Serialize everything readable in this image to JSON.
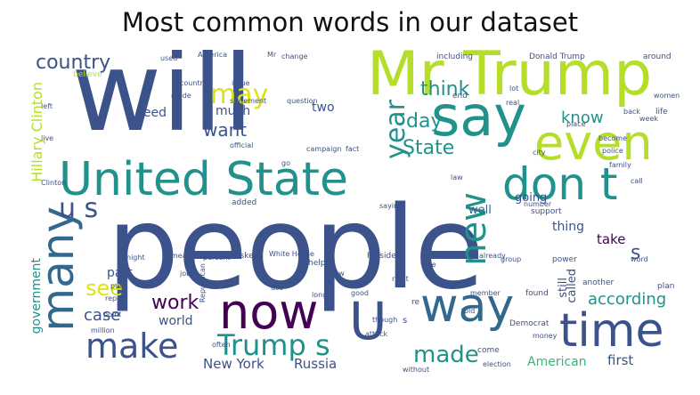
{
  "title": "Most common words in our dataset",
  "palette": {
    "dark_blue": "#3b528b",
    "blue": "#31688e",
    "teal": "#21918c",
    "green": "#35b779",
    "lime": "#b5de2b",
    "yellow": "#dde318",
    "purple": "#440154"
  },
  "words": {
    "will": "will",
    "people": "people",
    "mr_trump": "Mr Trump",
    "say": "say",
    "even": "even",
    "united_state": "United State",
    "dont": "don t",
    "many": "many",
    "now": "now",
    "way": "way",
    "time": "time",
    "u_big": "U",
    "make": "make",
    "trump_s": "Trump s",
    "made": "made",
    "new": "new",
    "country": "country",
    "may": "may",
    "think": "think",
    "year": "year",
    "want": "want",
    "much": "much",
    "day": "day",
    "know": "know",
    "state": "State",
    "us": "u s",
    "hillary_clinton": "Hillary Clinton",
    "government": "government",
    "see": "see",
    "work": "work",
    "world": "world",
    "case": "case",
    "according": "according",
    "new_york": "New York",
    "russia": "Russia",
    "american": "American",
    "first": "first",
    "well": "well",
    "going": "going",
    "thing": "thing",
    "take": "take",
    "still": "still",
    "called": "called",
    "s": "s",
    "part": "part",
    "two": "two",
    "need": "need",
    "donald_trump": "Donald Trump",
    "including": "including",
    "around": "around",
    "white_house": "White House",
    "president": "President",
    "democrat": "Democrat",
    "republican": "Republican",
    "election": "election",
    "come": "come",
    "another": "another",
    "power": "power",
    "found": "found",
    "plan": "plan",
    "life": "life",
    "back": "back",
    "support": "support",
    "help": "help",
    "asked": "asked",
    "added": "added",
    "million": "million",
    "report": "report",
    "point": "point",
    "put": "put",
    "job": "job",
    "use": "use",
    "vote": "vote",
    "good": "good",
    "attack": "attack",
    "left": "left",
    "live": "live",
    "used": "used",
    "change": "change",
    "issue": "issue",
    "statement": "statement",
    "official": "official",
    "question": "question",
    "america": "America",
    "lot": "lot",
    "city": "city",
    "family": "family",
    "call": "call",
    "number": "number",
    "percent": "percent",
    "mean": "mean",
    "night": "night",
    "right": "right",
    "long": "long",
    "show": "show",
    "though": "though",
    "group": "group",
    "already": "already",
    "member": "member",
    "told": "told",
    "place": "place",
    "word": "word",
    "go": "go",
    "re": "re",
    "s2": "s",
    "mr": "Mr",
    "real": "real",
    "clinton": "Clinton",
    "police": "police",
    "saying": "saying",
    "women": "women",
    "week": "week",
    "campaign": "campaign",
    "fact": "fact",
    "without": "without",
    "often": "often",
    "law": "law",
    "money": "money",
    "end": "end",
    "country2": "country",
    "made2": "made",
    "become": "become",
    "believe": "believe"
  }
}
